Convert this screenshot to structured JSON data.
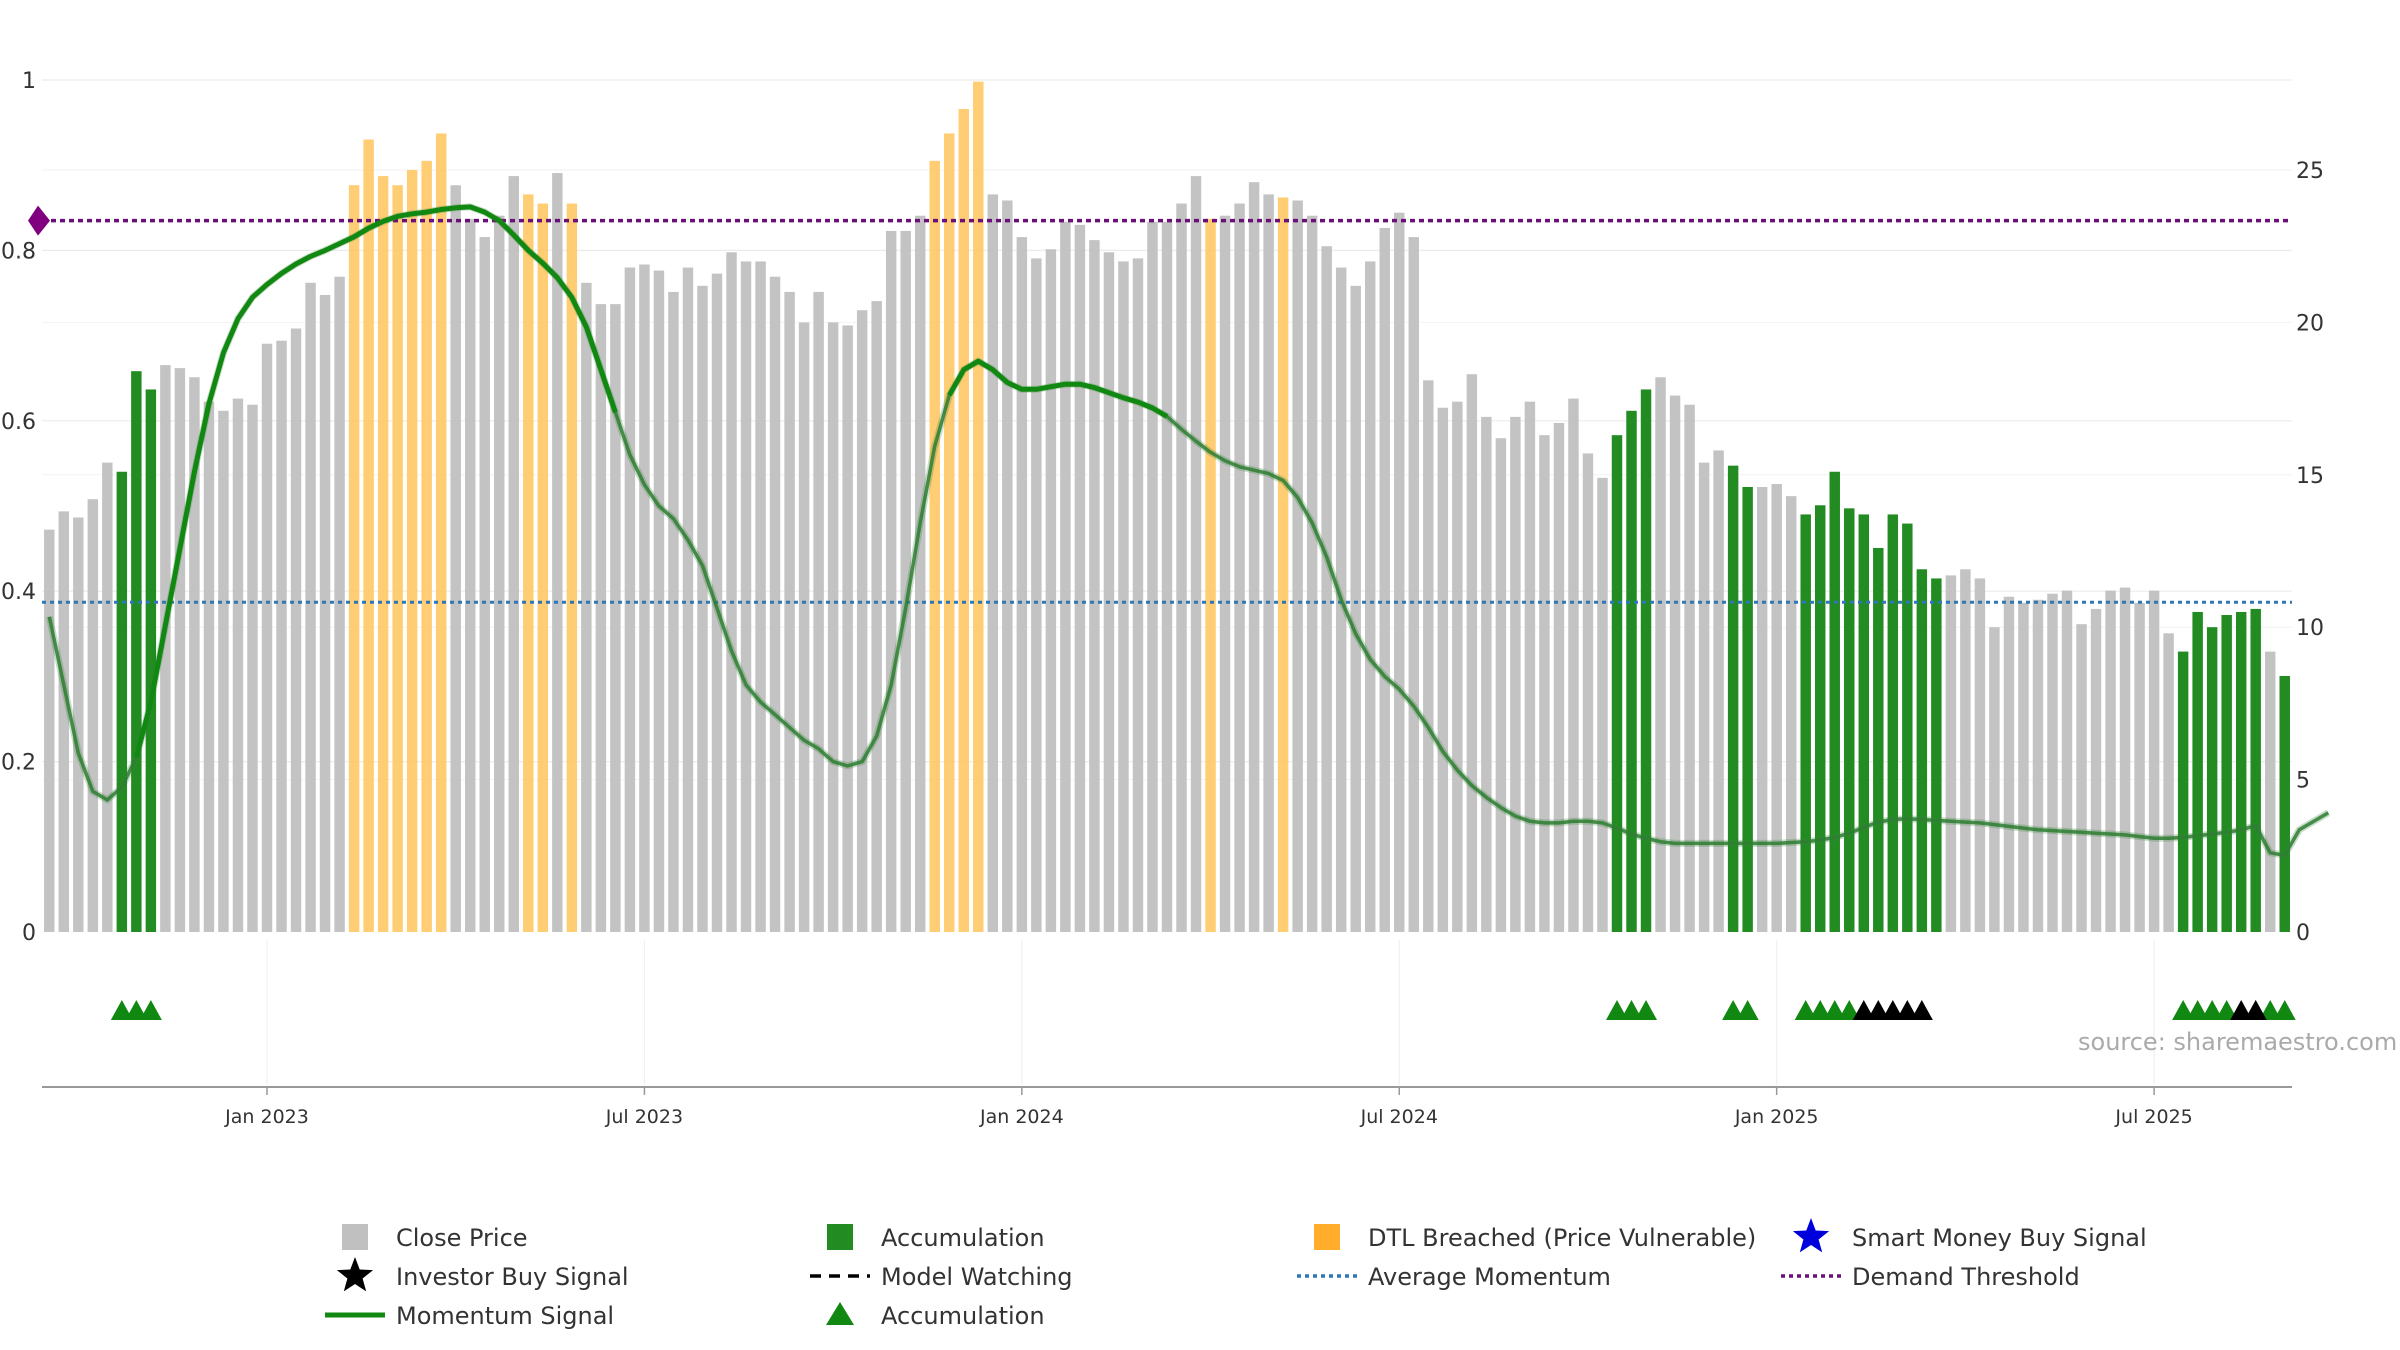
{
  "chart_data": {
    "type": "bar",
    "source_text": "source: sharemaestro.com",
    "left_axis": {
      "range": [
        0,
        1
      ],
      "ticks": [
        0,
        0.2,
        0.4,
        0.6,
        0.8,
        1
      ],
      "tick_labels": [
        "0",
        "0.2",
        "0.4",
        "0.6",
        "0.8",
        "1"
      ]
    },
    "right_axis": {
      "range": [
        0,
        25
      ],
      "ticks": [
        0,
        5,
        10,
        15,
        20,
        25
      ],
      "tick_labels": [
        "0",
        "5",
        "10",
        "15",
        "20",
        "25"
      ]
    },
    "x_axis": {
      "ticks": [
        {
          "index": 15,
          "label": "Jan 2023"
        },
        {
          "index": 41,
          "label": "Jul 2023"
        },
        {
          "index": 67,
          "label": "Jan 2024"
        },
        {
          "index": 93,
          "label": "Jul 2024"
        },
        {
          "index": 119,
          "label": "Jan 2025"
        },
        {
          "index": 145,
          "label": "Jul 2025"
        }
      ]
    },
    "grid": true,
    "legend_position": "bottom",
    "colors": {
      "close": "#c0c0c0",
      "accumulation": "#228b22",
      "dtl": "#ffc864",
      "momentum": "#118811",
      "average_momentum": "#2e77b8",
      "demand_threshold": "#6b0f7a",
      "investor_signal": "#000000",
      "smart_money": "#0000dd",
      "demand_marker": "#800080"
    },
    "average_momentum": 0.387,
    "demand_threshold": 0.835,
    "close_price": [
      13.2,
      13.8,
      13.6,
      14.2,
      15.4,
      15.1,
      18.4,
      17.8,
      18.6,
      18.5,
      18.2,
      17.4,
      17.1,
      17.5,
      17.3,
      19.3,
      19.4,
      19.8,
      21.3,
      20.9,
      21.5,
      24.5,
      26.0,
      24.8,
      24.5,
      25.0,
      25.3,
      26.2,
      24.5,
      23.4,
      22.8,
      23.5,
      24.8,
      24.2,
      23.9,
      24.9,
      23.9,
      21.3,
      20.6,
      20.6,
      21.8,
      21.9,
      21.7,
      21.0,
      21.8,
      21.2,
      21.6,
      22.3,
      22.0,
      22.0,
      21.5,
      21.0,
      20.0,
      21.0,
      20.0,
      19.9,
      20.4,
      20.7,
      23.0,
      23.0,
      23.5,
      25.3,
      26.2,
      27.0,
      27.9,
      24.2,
      24.0,
      22.8,
      22.1,
      22.4,
      23.3,
      23.2,
      22.7,
      22.3,
      22.0,
      22.1,
      23.3,
      23.3,
      23.9,
      24.8,
      23.4,
      23.5,
      23.9,
      24.6,
      24.2,
      24.1,
      24.0,
      23.5,
      22.5,
      21.8,
      21.2,
      22.0,
      23.1,
      23.6,
      22.8,
      18.1,
      17.2,
      17.4,
      18.3,
      16.9,
      16.2,
      16.9,
      17.4,
      16.3,
      16.7,
      17.5,
      15.7,
      14.9,
      16.3,
      17.1,
      17.8,
      18.2,
      17.6,
      17.3,
      15.4,
      15.8,
      15.3,
      14.6,
      14.6,
      14.7,
      14.3,
      13.7,
      14.0,
      15.1,
      13.9,
      13.7,
      12.6,
      13.7,
      13.4,
      11.9,
      11.6,
      11.7,
      11.9,
      11.6,
      10.0,
      11.0,
      10.8,
      10.9,
      11.1,
      11.2,
      10.1,
      10.6,
      11.2,
      11.3,
      10.8,
      11.2,
      9.8,
      9.2,
      10.5,
      10.0,
      10.4,
      10.5,
      10.6,
      9.2,
      8.4
    ],
    "accumulation_bars": [
      5,
      6,
      7,
      108,
      109,
      110,
      116,
      117,
      121,
      122,
      123,
      124,
      125,
      126,
      127,
      128,
      129,
      130,
      147,
      148,
      149,
      150,
      151,
      152,
      154,
      155,
      156
    ],
    "dtl_bars": [
      21,
      22,
      23,
      24,
      25,
      26,
      27,
      33,
      34,
      36,
      61,
      62,
      63,
      64,
      80,
      85
    ],
    "momentum": [
      0.37,
      0.29,
      0.21,
      0.165,
      0.155,
      0.17,
      0.205,
      0.27,
      0.36,
      0.45,
      0.54,
      0.62,
      0.68,
      0.72,
      0.745,
      0.76,
      0.773,
      0.784,
      0.793,
      0.8,
      0.808,
      0.816,
      0.826,
      0.834,
      0.84,
      0.843,
      0.845,
      0.848,
      0.85,
      0.851,
      0.845,
      0.835,
      0.818,
      0.8,
      0.785,
      0.768,
      0.745,
      0.71,
      0.66,
      0.61,
      0.56,
      0.525,
      0.5,
      0.485,
      0.46,
      0.43,
      0.38,
      0.33,
      0.29,
      0.27,
      0.255,
      0.24,
      0.225,
      0.215,
      0.2,
      0.195,
      0.2,
      0.23,
      0.29,
      0.38,
      0.48,
      0.57,
      0.63,
      0.66,
      0.67,
      0.66,
      0.645,
      0.637,
      0.637,
      0.64,
      0.643,
      0.643,
      0.639,
      0.633,
      0.627,
      0.622,
      0.615,
      0.605,
      0.59,
      0.576,
      0.563,
      0.553,
      0.546,
      0.542,
      0.538,
      0.53,
      0.51,
      0.48,
      0.44,
      0.39,
      0.35,
      0.32,
      0.3,
      0.285,
      0.265,
      0.24,
      0.212,
      0.19,
      0.172,
      0.158,
      0.146,
      0.136,
      0.13,
      0.128,
      0.128,
      0.13,
      0.13,
      0.128,
      0.122,
      0.115,
      0.11,
      0.106,
      0.104,
      0.104,
      0.104,
      0.104,
      0.104,
      0.104,
      0.104,
      0.104,
      0.105,
      0.106,
      0.108,
      0.111,
      0.116,
      0.123,
      0.129,
      0.132,
      0.133,
      0.132,
      0.131,
      0.13,
      0.129,
      0.128,
      0.126,
      0.124,
      0.122,
      0.12,
      0.119,
      0.118,
      0.117,
      0.116,
      0.115,
      0.114,
      0.112,
      0.11,
      0.11,
      0.111,
      0.113,
      0.115,
      0.117,
      0.12,
      0.125,
      0.093,
      0.09,
      0.12,
      0.13,
      0.14
    ],
    "accumulation_markers": [
      5,
      6,
      7,
      108,
      109,
      110,
      116,
      117,
      121,
      122,
      123,
      124,
      147,
      148,
      149,
      150,
      152,
      153,
      154
    ],
    "investor_markers": [
      125,
      126,
      127,
      128,
      129,
      151,
      152
    ]
  },
  "legend": {
    "items": [
      {
        "label": "Close Price",
        "marker": "gray-square-icon"
      },
      {
        "label": "Investor Buy Signal",
        "marker": "black-star-icon"
      },
      {
        "label": "Momentum Signal",
        "marker": "green-line-icon"
      },
      {
        "label": "Accumulation",
        "marker": "green-square-icon"
      },
      {
        "label": "Model Watching",
        "marker": "black-dashed-line-icon"
      },
      {
        "label": "Accumulation",
        "marker": "green-triangle-icon"
      },
      {
        "label": "DTL Breached (Price Vulnerable)",
        "marker": "orange-square-icon"
      },
      {
        "label": "Average Momentum",
        "marker": "blue-dotted-line-icon"
      },
      {
        "label": "Smart Money Buy Signal",
        "marker": "blue-star-icon"
      },
      {
        "label": "Demand Threshold",
        "marker": "purple-dotted-line-icon"
      }
    ]
  }
}
